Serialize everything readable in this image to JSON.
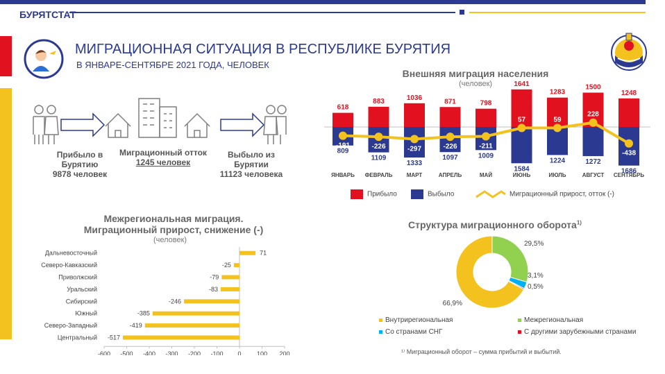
{
  "header": {
    "brand": "БУРЯТСТАТ",
    "title": "МИГРАЦИОННАЯ СИТУАЦИЯ В РЕСПУБЛИКЕ БУРЯТИЯ",
    "subtitle": "В ЯНВАРЕ-СЕНТЯБРЕ 2021 ГОДА, ЧЕЛОВЕК"
  },
  "colors": {
    "navy": "#2b3990",
    "red": "#e1111f",
    "yellow": "#f4c21f",
    "green": "#92d050",
    "blue": "#00b0f0"
  },
  "summary": {
    "arrived_label": "Прибыло в Бурятию",
    "arrived_value": "9878 человек",
    "outflow_label": "Миграционный отток",
    "outflow_value": "1245 человек",
    "departed_label": "Выбыло из Бурятии",
    "departed_value": "11123 человека"
  },
  "chart_data": [
    {
      "type": "bar",
      "title": "Внешняя миграция населения",
      "subtitle": "(человек)",
      "categories": [
        "ЯНВАРЬ",
        "ФЕВРАЛЬ",
        "МАРТ",
        "АПРЕЛЬ",
        "МАЙ",
        "ИЮНЬ",
        "ИЮЛЬ",
        "АВГУСТ",
        "СЕНТЯБРЬ"
      ],
      "series": [
        {
          "name": "Прибыло",
          "values": [
            618,
            883,
            1036,
            871,
            798,
            1641,
            1283,
            1500,
            1248
          ]
        },
        {
          "name": "Выбыло",
          "values": [
            809,
            1109,
            1333,
            1097,
            1009,
            1584,
            1224,
            1272,
            1686
          ]
        },
        {
          "name": "Миграционный прирост, отток (-)",
          "values": [
            -191,
            -226,
            -297,
            -226,
            -211,
            57,
            59,
            228,
            -438
          ]
        }
      ]
    },
    {
      "type": "bar",
      "title": "Межрегиональная миграция.",
      "title2": "Миграционный прирост, снижение (-)",
      "subtitle": "(человек)",
      "categories": [
        "Дальневосточный",
        "Северо-Кавказский",
        "Приволжский",
        "Уральский",
        "Сибирский",
        "Южный",
        "Северо-Западный",
        "Центральный"
      ],
      "values": [
        71,
        -25,
        -79,
        -83,
        -246,
        -385,
        -419,
        -517
      ],
      "xlim": [
        -600,
        200
      ],
      "xticks": [
        "-600",
        "-500",
        "-400",
        "-300",
        "-200",
        "-100",
        "0",
        "100",
        "200"
      ]
    },
    {
      "type": "pie",
      "title": "Структура миграционного оборота",
      "title_sup": "1)",
      "labels": [
        "Внутрирегиональная",
        "Межрегиональная",
        "Со странами СНГ",
        "С другими зарубежными странами"
      ],
      "values": [
        66.9,
        29.5,
        3.1,
        0.5
      ],
      "value_labels": [
        "66,9%",
        "29,5%",
        "3,1%",
        "0,5%"
      ]
    }
  ],
  "footnote": "¹⁾ Миграционный оборот – сумма прибытий и выбытий."
}
